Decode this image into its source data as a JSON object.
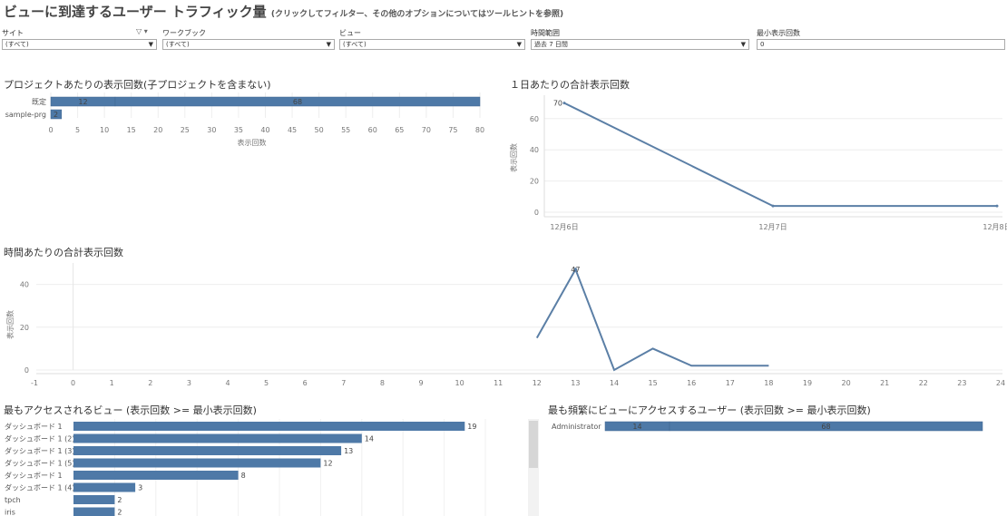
{
  "page": {
    "title": "ビューに到達するユーザー トラフィック量",
    "subtitle": "(クリックしてフィルター、その他のオプションについてはツールヒントを参照)"
  },
  "filters": [
    {
      "label": "サイト",
      "value": "(すべて)"
    },
    {
      "label": "ワークブック",
      "value": "(すべて)"
    },
    {
      "label": "ビュー",
      "value": "(すべて)"
    },
    {
      "label": "時間範囲",
      "value": "過去 7 日間"
    },
    {
      "label": "最小表示回数",
      "value": "0"
    }
  ],
  "filter_icons": {
    "funnel": "funnel-icon",
    "menu": "chevron-down-icon"
  },
  "colors": {
    "bar": "#4e79a7",
    "line": "#5b7fa6",
    "grid": "#eeeeee"
  },
  "chart_data": [
    {
      "id": "project",
      "type": "bar",
      "title": "プロジェクトあたりの表示回数(子プロジェクトを含まない)",
      "xlabel": "表示回数",
      "categories": [
        "既定",
        "sample-prg"
      ],
      "segments": [
        [
          12,
          68
        ],
        [
          2
        ]
      ],
      "xticks": [
        "0",
        "5",
        "10",
        "15",
        "20",
        "25",
        "30",
        "35",
        "40",
        "45",
        "50",
        "55",
        "60",
        "65",
        "70",
        "75",
        "80"
      ],
      "xlim": [
        0,
        80
      ]
    },
    {
      "id": "daily",
      "type": "line",
      "title": "１日あたりの合計表示回数",
      "ylabel": "表示回数",
      "x": [
        "12月6日",
        "12月7日",
        "12月8日"
      ],
      "values": [
        70,
        4,
        4
      ],
      "point_label": "70",
      "yticks": [
        "0",
        "20",
        "40",
        "60"
      ],
      "ylim": [
        0,
        75
      ]
    },
    {
      "id": "hourly",
      "type": "line",
      "title": "時間あたりの合計表示回数",
      "ylabel": "表示回数",
      "x": [
        12,
        13,
        14,
        15,
        16,
        17,
        18
      ],
      "values": [
        15,
        47,
        0,
        10,
        2,
        2,
        2
      ],
      "point_label": "47",
      "xticks": [
        "-1",
        "0",
        "1",
        "2",
        "3",
        "4",
        "5",
        "6",
        "7",
        "8",
        "9",
        "10",
        "11",
        "12",
        "13",
        "14",
        "15",
        "16",
        "17",
        "18",
        "19",
        "20",
        "21",
        "22",
        "23",
        "24"
      ],
      "xlim": [
        -1,
        24
      ],
      "yticks": [
        "0",
        "20",
        "40"
      ],
      "ylim": [
        0,
        50
      ]
    },
    {
      "id": "views",
      "type": "bar",
      "title": "最もアクセスされるビュー (表示回数 >= 最小表示回数)",
      "categories": [
        "ダッシュボード 1",
        "ダッシュボード 1 (2)",
        "ダッシュボード 1 (3)",
        "ダッシュボード 1 (5)",
        "ダッシュボード 1",
        "ダッシュボード 1 (4)",
        "tpch",
        "iris"
      ],
      "values": [
        19,
        14,
        13,
        12,
        8,
        3,
        2,
        2
      ],
      "xlim": [
        0,
        20
      ]
    },
    {
      "id": "users",
      "type": "bar",
      "title": "最も頻繁にビューにアクセスするユーザー (表示回数 >= 最小表示回数)",
      "categories": [
        "Administrator"
      ],
      "segments": [
        [
          14,
          68
        ]
      ],
      "xlim": [
        0,
        82
      ]
    }
  ]
}
